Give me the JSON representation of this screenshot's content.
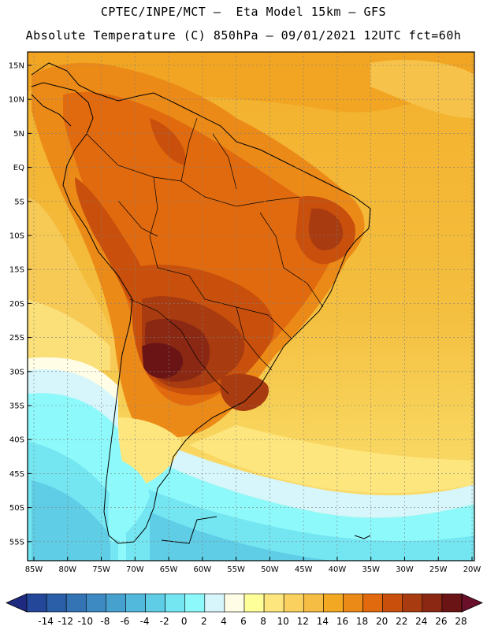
{
  "header": {
    "line1": "CPTEC/INPE/MCT —  Eta Model 15km — GFS",
    "line2": "Absolute Temperature (C) 850hPa — 09/01/2021 12UTC fct=60h"
  },
  "map": {
    "lat_labels": [
      "15N",
      "10N",
      "5N",
      "EQ",
      "5S",
      "10S",
      "15S",
      "20S",
      "25S",
      "30S",
      "35S",
      "40S",
      "45S",
      "50S",
      "55S"
    ],
    "lon_labels": [
      "85W",
      "80W",
      "75W",
      "70W",
      "65W",
      "60W",
      "55W",
      "50W",
      "45W",
      "40W",
      "35W",
      "30W",
      "25W",
      "20W"
    ],
    "frame_color": "#000000",
    "grid_color": "#7f7f7f"
  },
  "colorbar": {
    "labels": [
      "-14",
      "-12",
      "-10",
      "-8",
      "-6",
      "-4",
      "-2",
      "0",
      "2",
      "4",
      "6",
      "8",
      "10",
      "12",
      "14",
      "16",
      "18",
      "20",
      "22",
      "24",
      "26",
      "28"
    ],
    "low_color": "#1e2a80",
    "high_color": "#6a0f2a",
    "colors": [
      "#24479a",
      "#2b5fa8",
      "#3474b5",
      "#3d8ac2",
      "#47a1cf",
      "#52b8dc",
      "#5fcde6",
      "#74e6f2",
      "#8ef9fb",
      "#d6f6fb",
      "#fffde6",
      "#ffff99",
      "#fde67d",
      "#fad15f",
      "#f6bd45",
      "#f3a823",
      "#ec8a18",
      "#e16a0e",
      "#c8500c",
      "#a83c10",
      "#8a2814",
      "#6a1416"
    ]
  }
}
